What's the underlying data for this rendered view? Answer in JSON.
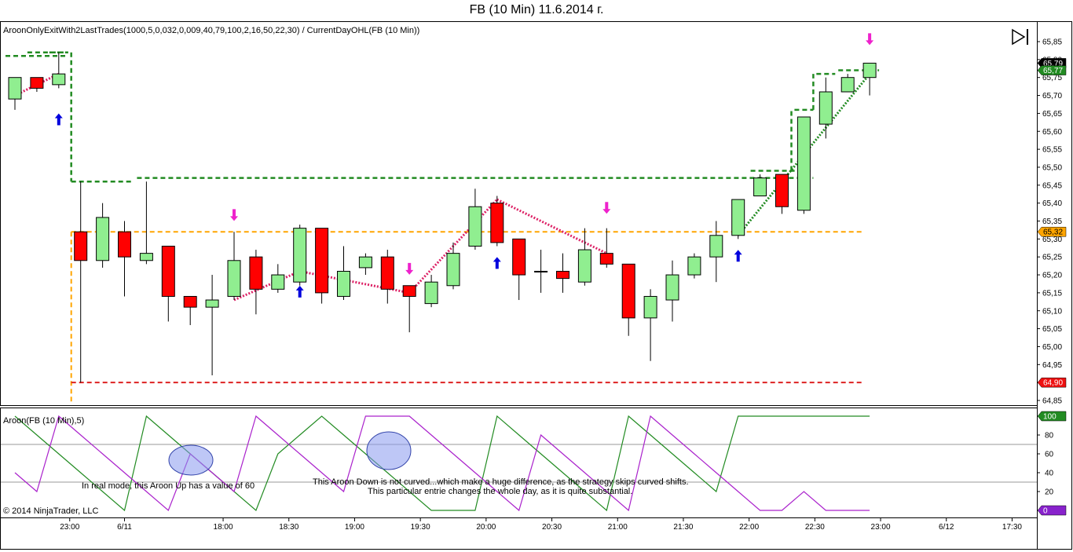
{
  "title": "FB (10 Min)  11.6.2014 г.",
  "indicator_label": "AroonOnlyExitWith2LastTrades(1000,5,0,032,0,009,40,79,100,2,16,50,22,30) / CurrentDayOHL(FB (10 Min))",
  "aroon_label": "Aroon(FB (10 Min),5)",
  "copyright": "© 2014 NinjaTrader, LLC",
  "annotation1": "In real mode, this Aroon Up has a value of 60",
  "annotation2_line1": "This Aroon Down is not curved...which make a huge difference, as the strategy skips curved shifts.",
  "annotation2_line2": "This particular entrie changes the whole day, as it is quite substantial.",
  "price_tags": {
    "last_close": "65,79",
    "prev": "65,77",
    "open": "65,32",
    "low": "64,90",
    "aroon_up": "100",
    "aroon_down": "0"
  },
  "colors": {
    "bull": "#90ee90",
    "bear": "#ff0000",
    "high_line": "#228b22",
    "open_line": "#ffa500",
    "low_line": "#dd2222",
    "aroon_up": "#228b22",
    "aroon_down": "#aa22cc",
    "trade_line": "#dd2266",
    "win_line": "#228b22"
  },
  "chart_data": {
    "type": "candlestick",
    "price_axis": {
      "min": 64.85,
      "max": 65.85,
      "ticks": [
        "65,85",
        "65,80",
        "65,75",
        "65,70",
        "65,65",
        "65,60",
        "65,55",
        "65,50",
        "65,45",
        "65,40",
        "65,35",
        "65,30",
        "65,25",
        "65,20",
        "65,15",
        "65,10",
        "65,05",
        "65,00",
        "64,95",
        "64,90",
        "64,85"
      ]
    },
    "time_labels": [
      {
        "label": "23:00",
        "idx": 2.5
      },
      {
        "label": "6/11",
        "idx": 5
      },
      {
        "label": "18:00",
        "idx": 9.5
      },
      {
        "label": "18:30",
        "idx": 12.5
      },
      {
        "label": "19:00",
        "idx": 15.5
      },
      {
        "label": "19:30",
        "idx": 18.5
      },
      {
        "label": "20:00",
        "idx": 21.5
      },
      {
        "label": "20:30",
        "idx": 24.5
      },
      {
        "label": "21:00",
        "idx": 27.5
      },
      {
        "label": "21:30",
        "idx": 30.5
      },
      {
        "label": "22:00",
        "idx": 33.5
      },
      {
        "label": "22:30",
        "idx": 36.5
      },
      {
        "label": "23:00",
        "idx": 39.5
      },
      {
        "label": "6/12",
        "idx": 42.5
      },
      {
        "label": "17:30",
        "idx": 45.5
      }
    ],
    "candles": [
      [
        65.69,
        65.75,
        65.66,
        65.75
      ],
      [
        65.75,
        65.75,
        65.71,
        65.72
      ],
      [
        65.73,
        65.82,
        65.72,
        65.76
      ],
      [
        65.32,
        65.46,
        64.9,
        65.24
      ],
      [
        65.24,
        65.4,
        65.22,
        65.36
      ],
      [
        65.32,
        65.35,
        65.14,
        65.25
      ],
      [
        65.24,
        65.46,
        65.23,
        65.26
      ],
      [
        65.28,
        65.28,
        65.07,
        65.14
      ],
      [
        65.14,
        65.14,
        65.06,
        65.11
      ],
      [
        65.11,
        65.2,
        64.92,
        65.13
      ],
      [
        65.14,
        65.32,
        65.13,
        65.24
      ],
      [
        65.25,
        65.27,
        65.09,
        65.16
      ],
      [
        65.16,
        65.23,
        65.15,
        65.2
      ],
      [
        65.18,
        65.34,
        65.17,
        65.33
      ],
      [
        65.33,
        65.33,
        65.12,
        65.15
      ],
      [
        65.14,
        65.28,
        65.13,
        65.21
      ],
      [
        65.22,
        65.26,
        65.2,
        65.25
      ],
      [
        65.25,
        65.27,
        65.12,
        65.16
      ],
      [
        65.17,
        65.17,
        65.04,
        65.14
      ],
      [
        65.12,
        65.2,
        65.11,
        65.18
      ],
      [
        65.17,
        65.29,
        65.16,
        65.26
      ],
      [
        65.28,
        65.44,
        65.27,
        65.39
      ],
      [
        65.4,
        65.42,
        65.28,
        65.29
      ],
      [
        65.3,
        65.3,
        65.13,
        65.2
      ],
      [
        65.21,
        65.27,
        65.15,
        65.21
      ],
      [
        65.21,
        65.26,
        65.15,
        65.19
      ],
      [
        65.18,
        65.33,
        65.17,
        65.27
      ],
      [
        65.26,
        65.33,
        65.22,
        65.23
      ],
      [
        65.23,
        65.23,
        65.03,
        65.08
      ],
      [
        65.08,
        65.16,
        64.96,
        65.14
      ],
      [
        65.13,
        65.24,
        65.07,
        65.2
      ],
      [
        65.2,
        65.26,
        65.19,
        65.25
      ],
      [
        65.25,
        65.35,
        65.18,
        65.31
      ],
      [
        65.31,
        65.41,
        65.3,
        65.41
      ],
      [
        65.42,
        65.48,
        65.42,
        65.47
      ],
      [
        65.48,
        65.48,
        65.37,
        65.39
      ],
      [
        65.38,
        65.64,
        65.37,
        65.64
      ],
      [
        65.62,
        65.75,
        65.58,
        65.71
      ],
      [
        65.71,
        65.76,
        65.71,
        65.75
      ],
      [
        65.75,
        65.79,
        65.7,
        65.79
      ]
    ],
    "current_day_high": [
      [
        0,
        3,
        65.81
      ],
      [
        1,
        3,
        65.82
      ],
      [
        2,
        3,
        65.82
      ],
      [
        3,
        6,
        65.46
      ],
      [
        6,
        37,
        65.47
      ],
      [
        34,
        37,
        65.49
      ],
      [
        36,
        37,
        65.66
      ],
      [
        37,
        38,
        65.76
      ],
      [
        38,
        40,
        65.77
      ]
    ],
    "current_day_open": 65.32,
    "current_day_low": 64.9,
    "trades": [
      {
        "from": [
          0,
          65.7
        ],
        "to": [
          2,
          65.76
        ],
        "type": "loss"
      },
      {
        "from": [
          10,
          65.13
        ],
        "to": [
          13,
          65.21
        ],
        "type": "loss"
      },
      {
        "from": [
          13,
          65.21
        ],
        "to": [
          18,
          65.15
        ],
        "type": "loss"
      },
      {
        "from": [
          18,
          65.15
        ],
        "to": [
          22,
          65.41
        ],
        "type": "loss"
      },
      {
        "from": [
          22,
          65.41
        ],
        "to": [
          27,
          65.26
        ],
        "type": "loss"
      },
      {
        "from": [
          33,
          65.31
        ],
        "to": [
          39,
          65.76
        ],
        "type": "win"
      }
    ],
    "entry_arrows": [
      {
        "idx": 2,
        "dir": "up",
        "price": 65.63
      },
      {
        "idx": 13,
        "dir": "up",
        "price": 65.15
      },
      {
        "idx": 22,
        "dir": "up",
        "price": 65.23
      },
      {
        "idx": 33,
        "dir": "up",
        "price": 65.25
      }
    ],
    "exit_arrows": [
      {
        "idx": 10,
        "dir": "down",
        "price": 65.37
      },
      {
        "idx": 18,
        "dir": "down",
        "price": 65.22
      },
      {
        "idx": 27,
        "dir": "down",
        "price": 65.39
      },
      {
        "idx": 39,
        "dir": "down",
        "price": 65.86
      }
    ],
    "aroon_axis": {
      "min": 0,
      "max": 100,
      "ticks": [
        "100",
        "80",
        "60",
        "40",
        "20",
        "0"
      ],
      "grid": [
        30,
        70
      ]
    },
    "aroon_up": [
      100,
      80,
      60,
      40,
      20,
      0,
      100,
      80,
      60,
      40,
      20,
      0,
      60,
      80,
      100,
      80,
      60,
      40,
      20,
      0,
      0,
      0,
      100,
      80,
      60,
      40,
      20,
      0,
      100,
      80,
      60,
      40,
      20,
      100,
      100,
      100,
      100,
      100,
      100,
      100
    ],
    "aroon_down": [
      40,
      20,
      100,
      80,
      60,
      40,
      20,
      0,
      60,
      40,
      20,
      100,
      80,
      60,
      40,
      20,
      100,
      100,
      100,
      80,
      60,
      40,
      20,
      0,
      80,
      60,
      40,
      20,
      0,
      100,
      80,
      60,
      40,
      20,
      0,
      0,
      20,
      0,
      0,
      0
    ]
  }
}
